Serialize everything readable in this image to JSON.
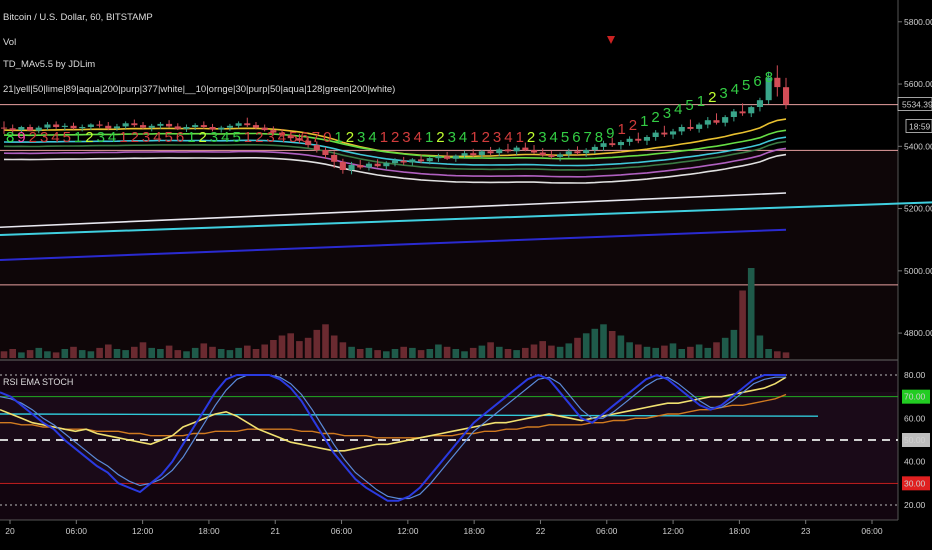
{
  "header": {
    "title": "Bitcoin / U.S. Dollar, 60, BITSTAMP",
    "vol_label": "Vol",
    "indicator_name": "TD_MAv5.5 by JDLim",
    "ma_legend": "21|yell|50|lime|89|aqua|200|purp|377|white|__10|ornge|30|purp|50|aqua|128|green|200|white)"
  },
  "price_pane": {
    "ylim": [
      4720,
      5870
    ],
    "ticks": [
      {
        "value": 5800,
        "label": "5800.00"
      },
      {
        "value": 5600,
        "label": "5600.00"
      },
      {
        "value": 5400,
        "label": "5400.00"
      },
      {
        "value": 5200,
        "label": "5200.00"
      },
      {
        "value": 5000,
        "label": "5000.00"
      },
      {
        "value": 4800,
        "label": "4800.00"
      }
    ],
    "last_price": {
      "value": 5534.39,
      "label": "5534.39"
    },
    "countdown": "18:59",
    "hlines": [
      5534,
      5387,
      4955
    ],
    "colors": {
      "up": "#3aa58a",
      "down": "#d24d57",
      "hline": "#e8a0a0"
    }
  },
  "oscillator": {
    "title": "RSI EMA STOCH",
    "ylim": [
      14,
      86
    ],
    "ticks": [
      {
        "value": 80,
        "label": "80.00"
      },
      {
        "value": 60,
        "label": "60.00"
      },
      {
        "value": 40,
        "label": "40.00"
      },
      {
        "value": 20,
        "label": "20.00"
      }
    ],
    "badges": [
      {
        "value": 70,
        "label": "70.00",
        "bg": "#22cc22",
        "fg": "#000"
      },
      {
        "value": 50,
        "label": "50.00",
        "bg": "#bdbdbd",
        "fg": "#000"
      },
      {
        "value": 30,
        "label": "30.00",
        "bg": "#e02020",
        "fg": "#fff"
      }
    ]
  },
  "x_axis": {
    "labels": [
      "20",
      "06:00",
      "12:00",
      "18:00",
      "21",
      "06:00",
      "12:00",
      "18:00",
      "22",
      "06:00",
      "12:00",
      "18:00",
      "23",
      "06:00"
    ]
  },
  "td_counts": [
    {
      "text": "8",
      "color": "#33dd44"
    },
    {
      "text": "9",
      "color": "#ff44aa"
    },
    {
      "text": "2",
      "color": "#d23c3c"
    },
    {
      "text": "3",
      "color": "#d23c3c"
    },
    {
      "text": "4",
      "color": "#d23c3c"
    },
    {
      "text": "5",
      "color": "#d23c3c"
    },
    {
      "text": "1",
      "color": "#33cc44"
    },
    {
      "text": "2",
      "color": "#c0ff30"
    },
    {
      "text": "3",
      "color": "#33cc44"
    },
    {
      "text": "4",
      "color": "#33cc44"
    },
    {
      "text": "1",
      "color": "#d23c3c"
    },
    {
      "text": "2",
      "color": "#d23c3c"
    },
    {
      "text": "3",
      "color": "#d23c3c"
    },
    {
      "text": "4",
      "color": "#d23c3c"
    },
    {
      "text": "5",
      "color": "#d23c3c"
    },
    {
      "text": "6",
      "color": "#d23c3c"
    },
    {
      "text": "1",
      "color": "#33cc44"
    },
    {
      "text": "2",
      "color": "#c0ff30"
    },
    {
      "text": "3",
      "color": "#33cc44"
    },
    {
      "text": "4",
      "color": "#33cc44"
    },
    {
      "text": "5",
      "color": "#33cc44"
    },
    {
      "text": "1",
      "color": "#d23c3c"
    },
    {
      "text": "2",
      "color": "#d23c3c"
    },
    {
      "text": "3",
      "color": "#d23c3c"
    },
    {
      "text": "4",
      "color": "#d23c3c"
    },
    {
      "text": "5",
      "color": "#d23c3c"
    },
    {
      "text": "6",
      "color": "#d23c3c"
    },
    {
      "text": "7",
      "color": "#d23c3c"
    },
    {
      "text": "0",
      "color": "#d23c3c"
    },
    {
      "text": "1",
      "color": "#33cc44"
    },
    {
      "text": "2",
      "color": "#c0ff30"
    },
    {
      "text": "3",
      "color": "#33cc44"
    },
    {
      "text": "4",
      "color": "#33cc44"
    },
    {
      "text": "1",
      "color": "#d23c3c"
    },
    {
      "text": "2",
      "color": "#d23c3c"
    },
    {
      "text": "3",
      "color": "#d23c3c"
    },
    {
      "text": "4",
      "color": "#d23c3c"
    },
    {
      "text": "1",
      "color": "#33cc44"
    },
    {
      "text": "2",
      "color": "#c0ff30"
    },
    {
      "text": "3",
      "color": "#33cc44"
    },
    {
      "text": "4",
      "color": "#33cc44"
    },
    {
      "text": "1",
      "color": "#d23c3c"
    },
    {
      "text": "2",
      "color": "#d23c3c"
    },
    {
      "text": "3",
      "color": "#d23c3c"
    },
    {
      "text": "4",
      "color": "#d23c3c"
    },
    {
      "text": "1",
      "color": "#d23c3c"
    },
    {
      "text": "2",
      "color": "#c0ff30"
    },
    {
      "text": "3",
      "color": "#33cc44"
    },
    {
      "text": "4",
      "color": "#33cc44"
    },
    {
      "text": "5",
      "color": "#33cc44"
    },
    {
      "text": "6",
      "color": "#33cc44"
    },
    {
      "text": "7",
      "color": "#33cc44"
    },
    {
      "text": "8",
      "color": "#33cc44"
    },
    {
      "text": "9",
      "color": "#33cc44"
    },
    {
      "text": "1",
      "color": "#d23c3c"
    },
    {
      "text": "2",
      "color": "#d23c3c"
    },
    {
      "text": "1",
      "color": "#33cc44"
    },
    {
      "text": "2",
      "color": "#33cc44"
    },
    {
      "text": "3",
      "color": "#33cc44"
    },
    {
      "text": "4",
      "color": "#33cc44"
    },
    {
      "text": "5",
      "color": "#33cc44"
    },
    {
      "text": "1",
      "color": "#33cc44"
    },
    {
      "text": "2",
      "color": "#c0ff30"
    },
    {
      "text": "3",
      "color": "#33cc44"
    },
    {
      "text": "4",
      "color": "#33cc44"
    },
    {
      "text": "5",
      "color": "#33cc44"
    },
    {
      "text": "6",
      "color": "#33cc44"
    },
    {
      "text": "8",
      "color": "#33cc44"
    }
  ],
  "chart_data": {
    "type": "candlestick",
    "ylabel": "",
    "ylim": [
      4720,
      5870
    ],
    "candles": [
      [
        5460,
        5480,
        5440,
        5458
      ],
      [
        5458,
        5470,
        5440,
        5452
      ],
      [
        5452,
        5466,
        5446,
        5462
      ],
      [
        5462,
        5470,
        5448,
        5450
      ],
      [
        5450,
        5466,
        5442,
        5460
      ],
      [
        5460,
        5478,
        5452,
        5470
      ],
      [
        5470,
        5480,
        5456,
        5462
      ],
      [
        5462,
        5474,
        5450,
        5466
      ],
      [
        5466,
        5476,
        5454,
        5458
      ],
      [
        5458,
        5470,
        5448,
        5462
      ],
      [
        5462,
        5474,
        5452,
        5470
      ],
      [
        5470,
        5482,
        5460,
        5466
      ],
      [
        5466,
        5478,
        5452,
        5458
      ],
      [
        5458,
        5472,
        5450,
        5464
      ],
      [
        5464,
        5480,
        5456,
        5474
      ],
      [
        5474,
        5486,
        5462,
        5468
      ],
      [
        5468,
        5478,
        5456,
        5460
      ],
      [
        5460,
        5472,
        5448,
        5466
      ],
      [
        5466,
        5478,
        5456,
        5472
      ],
      [
        5472,
        5484,
        5460,
        5464
      ],
      [
        5464,
        5474,
        5452,
        5456
      ],
      [
        5456,
        5470,
        5446,
        5462
      ],
      [
        5462,
        5474,
        5452,
        5468
      ],
      [
        5468,
        5480,
        5456,
        5462
      ],
      [
        5462,
        5472,
        5448,
        5454
      ],
      [
        5454,
        5466,
        5444,
        5460
      ],
      [
        5460,
        5472,
        5450,
        5466
      ],
      [
        5466,
        5480,
        5458,
        5474
      ],
      [
        5474,
        5492,
        5462,
        5468
      ],
      [
        5468,
        5478,
        5454,
        5460
      ],
      [
        5460,
        5470,
        5448,
        5452
      ],
      [
        5452,
        5464,
        5438,
        5444
      ],
      [
        5444,
        5456,
        5430,
        5436
      ],
      [
        5436,
        5448,
        5420,
        5426
      ],
      [
        5426,
        5440,
        5410,
        5418
      ],
      [
        5418,
        5430,
        5396,
        5404
      ],
      [
        5404,
        5416,
        5380,
        5388
      ],
      [
        5388,
        5398,
        5360,
        5372
      ],
      [
        5372,
        5384,
        5330,
        5350
      ],
      [
        5350,
        5360,
        5312,
        5324
      ],
      [
        5324,
        5350,
        5310,
        5340
      ],
      [
        5340,
        5356,
        5326,
        5332
      ],
      [
        5332,
        5350,
        5322,
        5344
      ],
      [
        5344,
        5358,
        5332,
        5336
      ],
      [
        5336,
        5352,
        5326,
        5346
      ],
      [
        5346,
        5362,
        5336,
        5354
      ],
      [
        5354,
        5366,
        5340,
        5348
      ],
      [
        5348,
        5362,
        5338,
        5358
      ],
      [
        5358,
        5372,
        5346,
        5352
      ],
      [
        5352,
        5368,
        5342,
        5362
      ],
      [
        5362,
        5376,
        5350,
        5368
      ],
      [
        5368,
        5382,
        5356,
        5360
      ],
      [
        5360,
        5374,
        5350,
        5370
      ],
      [
        5370,
        5386,
        5360,
        5378
      ],
      [
        5378,
        5392,
        5366,
        5372
      ],
      [
        5372,
        5388,
        5362,
        5384
      ],
      [
        5384,
        5398,
        5372,
        5378
      ],
      [
        5378,
        5396,
        5368,
        5390
      ],
      [
        5390,
        5408,
        5378,
        5384
      ],
      [
        5384,
        5402,
        5372,
        5396
      ],
      [
        5396,
        5412,
        5384,
        5388
      ],
      [
        5388,
        5404,
        5376,
        5380
      ],
      [
        5380,
        5394,
        5366,
        5372
      ],
      [
        5372,
        5386,
        5360,
        5366
      ],
      [
        5366,
        5380,
        5352,
        5374
      ],
      [
        5374,
        5392,
        5364,
        5384
      ],
      [
        5384,
        5400,
        5372,
        5378
      ],
      [
        5378,
        5394,
        5366,
        5388
      ],
      [
        5388,
        5406,
        5376,
        5398
      ],
      [
        5398,
        5418,
        5386,
        5410
      ],
      [
        5410,
        5428,
        5398,
        5404
      ],
      [
        5404,
        5420,
        5390,
        5414
      ],
      [
        5414,
        5432,
        5402,
        5424
      ],
      [
        5424,
        5444,
        5410,
        5418
      ],
      [
        5418,
        5436,
        5404,
        5430
      ],
      [
        5430,
        5452,
        5418,
        5444
      ],
      [
        5444,
        5466,
        5430,
        5438
      ],
      [
        5438,
        5456,
        5424,
        5448
      ],
      [
        5448,
        5470,
        5436,
        5462
      ],
      [
        5462,
        5486,
        5450,
        5456
      ],
      [
        5456,
        5476,
        5444,
        5470
      ],
      [
        5470,
        5494,
        5458,
        5484
      ],
      [
        5484,
        5506,
        5470,
        5476
      ],
      [
        5476,
        5500,
        5464,
        5494
      ],
      [
        5494,
        5520,
        5480,
        5512
      ],
      [
        5512,
        5538,
        5498,
        5506
      ],
      [
        5506,
        5530,
        5494,
        5526
      ],
      [
        5526,
        5556,
        5512,
        5548
      ],
      [
        5548,
        5640,
        5536,
        5620
      ],
      [
        5620,
        5660,
        5560,
        5590
      ],
      [
        5590,
        5620,
        5520,
        5534
      ]
    ],
    "volume": [
      6,
      8,
      5,
      7,
      9,
      6,
      5,
      8,
      10,
      7,
      6,
      9,
      12,
      8,
      7,
      10,
      14,
      9,
      8,
      11,
      7,
      6,
      9,
      13,
      10,
      8,
      7,
      9,
      11,
      8,
      12,
      16,
      20,
      22,
      15,
      18,
      25,
      30,
      20,
      14,
      10,
      8,
      9,
      7,
      6,
      8,
      10,
      9,
      7,
      8,
      12,
      10,
      8,
      6,
      9,
      11,
      14,
      10,
      8,
      7,
      9,
      12,
      15,
      11,
      10,
      13,
      18,
      22,
      26,
      30,
      24,
      20,
      14,
      12,
      10,
      9,
      11,
      13,
      8,
      10,
      12,
      9,
      14,
      18,
      25,
      60,
      80,
      20,
      8,
      6,
      5
    ],
    "rsi_k": [
      72,
      70,
      66,
      62,
      58,
      55,
      50,
      46,
      42,
      38,
      35,
      30,
      28,
      26,
      30,
      34,
      40,
      48,
      56,
      64,
      72,
      78,
      80,
      80,
      80,
      80,
      78,
      74,
      68,
      60,
      52,
      44,
      38,
      32,
      28,
      25,
      22,
      22,
      24,
      28,
      34,
      40,
      46,
      52,
      58,
      62,
      66,
      70,
      74,
      78,
      80,
      78,
      72,
      66,
      60,
      58,
      62,
      66,
      70,
      74,
      78,
      80,
      78,
      74,
      70,
      66,
      64,
      66,
      70,
      74,
      78,
      80,
      80,
      80
    ],
    "rsi_d": [
      70,
      69,
      67,
      64,
      60,
      57,
      53,
      49,
      45,
      41,
      38,
      34,
      31,
      29,
      30,
      32,
      36,
      42,
      50,
      58,
      66,
      73,
      78,
      80,
      80,
      80,
      79,
      76,
      71,
      64,
      56,
      48,
      41,
      35,
      31,
      27,
      24,
      23,
      23,
      25,
      30,
      36,
      42,
      48,
      54,
      58,
      62,
      66,
      70,
      74,
      78,
      79,
      76,
      70,
      64,
      60,
      60,
      63,
      67,
      71,
      75,
      78,
      79,
      76,
      72,
      68,
      65,
      65,
      68,
      72,
      76,
      78,
      79,
      79
    ],
    "rsi_yellow": [
      64,
      62,
      60,
      58,
      57,
      56,
      55,
      54,
      55,
      53,
      52,
      51,
      50,
      49,
      48,
      50,
      52,
      56,
      58,
      60,
      62,
      63,
      61,
      58,
      55,
      53,
      51,
      49,
      48,
      47,
      46,
      45,
      45,
      46,
      47,
      48,
      48,
      49,
      50,
      51,
      52,
      53,
      54,
      55,
      56,
      57,
      58,
      58,
      59,
      60,
      61,
      62,
      61,
      60,
      59,
      60,
      61,
      62,
      63,
      64,
      65,
      66,
      67,
      67,
      68,
      69,
      70,
      70,
      71,
      72,
      73,
      74,
      76,
      79
    ],
    "rsi_orange": [
      58,
      58,
      57,
      57,
      56,
      56,
      55,
      55,
      55,
      54,
      54,
      54,
      53,
      53,
      52,
      52,
      52,
      52,
      53,
      53,
      54,
      54,
      54,
      55,
      55,
      55,
      55,
      55,
      54,
      54,
      53,
      53,
      52,
      52,
      52,
      51,
      51,
      51,
      51,
      51,
      52,
      52,
      52,
      53,
      53,
      54,
      54,
      55,
      55,
      56,
      56,
      57,
      57,
      57,
      57,
      58,
      58,
      59,
      59,
      60,
      60,
      61,
      62,
      62,
      63,
      64,
      64,
      65,
      66,
      66,
      67,
      68,
      69,
      71
    ],
    "rsi_aqua": [
      62,
      61
    ]
  }
}
